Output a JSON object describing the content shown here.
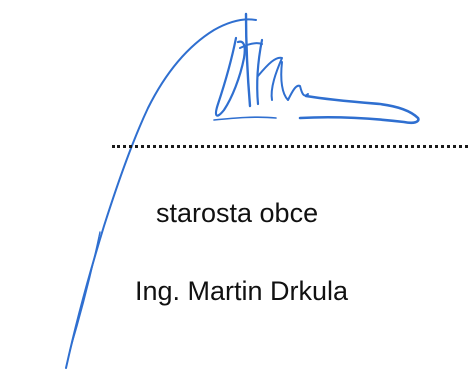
{
  "signature_block": {
    "role": "starosta obce",
    "name": "Ing. Martin Drkula"
  },
  "colors": {
    "ink": "#2f6fd0",
    "text": "#111111",
    "dots": "#1a1a1a"
  },
  "icons": {
    "signature": "handwritten-signature"
  }
}
